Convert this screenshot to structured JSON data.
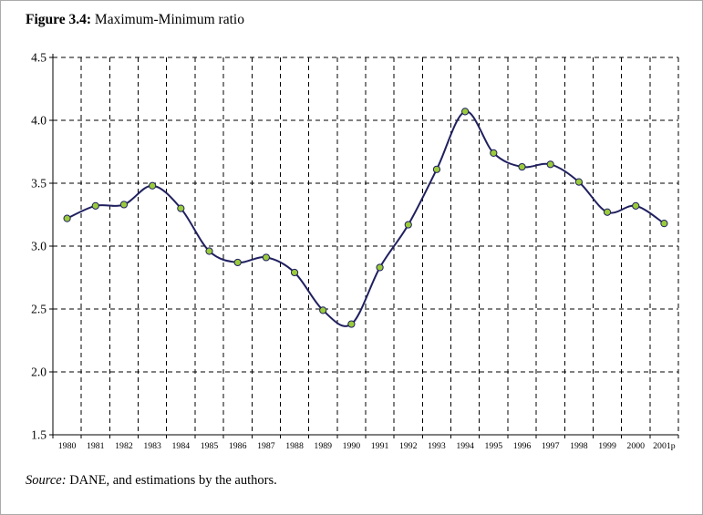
{
  "figure": {
    "title_prefix": "Figure 3.4:",
    "title_text": " Maximum-Minimum ratio"
  },
  "source": {
    "prefix": "Source:",
    "text": " DANE, and estimations by the authors."
  },
  "chart_data": {
    "type": "line",
    "title": "Figure 3.4: Maximum-Minimum ratio",
    "categories": [
      "1980",
      "1981",
      "1982",
      "1983",
      "1984",
      "1985",
      "1986",
      "1987",
      "1988",
      "1989",
      "1990",
      "1991",
      "1992",
      "1993",
      "1994",
      "1995",
      "1996",
      "1997",
      "1998",
      "1999",
      "2000",
      "2001p"
    ],
    "values": [
      3.22,
      3.32,
      3.33,
      3.48,
      3.3,
      2.96,
      2.87,
      2.91,
      2.79,
      2.49,
      2.38,
      2.83,
      3.17,
      3.61,
      4.07,
      3.74,
      3.63,
      3.65,
      3.51,
      3.27,
      3.32,
      3.18
    ],
    "ylim": [
      1.5,
      4.5
    ],
    "yticks": [
      1.5,
      2.0,
      2.5,
      3.0,
      3.5,
      4.0,
      4.5
    ],
    "yticklabels": [
      "1.5",
      "2.0",
      "2.5",
      "3.0",
      "3.5",
      "4.0",
      "4.5"
    ],
    "grid": "dashed-both",
    "legend": "none",
    "line_color": "#202060",
    "marker_color": "#9ACB3B",
    "marker_stroke": "#202060",
    "xlabel": "",
    "ylabel": ""
  }
}
